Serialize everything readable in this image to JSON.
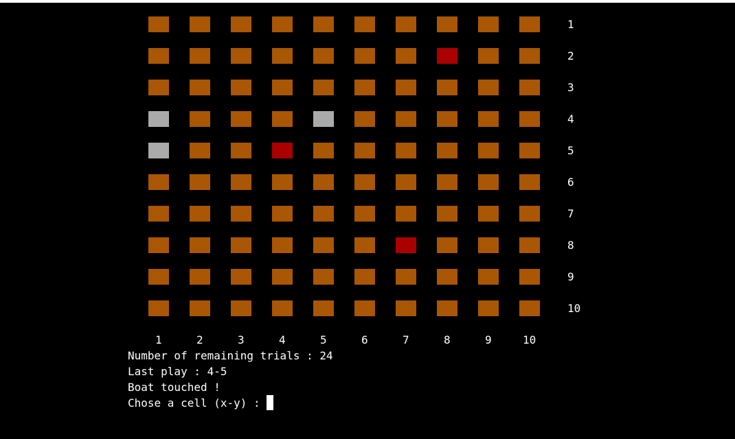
{
  "colors": {
    "background": "#000000",
    "unknown": "#a95605",
    "hit": "#aa0000",
    "miss": "#aaaaaa",
    "text": "#ffffff"
  },
  "grid": {
    "size": 10,
    "column_labels": [
      "1",
      "2",
      "3",
      "4",
      "5",
      "6",
      "7",
      "8",
      "9",
      "10"
    ],
    "row_labels": [
      "1",
      "2",
      "3",
      "4",
      "5",
      "6",
      "7",
      "8",
      "9",
      "10"
    ],
    "cells": [
      [
        "unknown",
        "unknown",
        "unknown",
        "unknown",
        "unknown",
        "unknown",
        "unknown",
        "unknown",
        "unknown",
        "unknown"
      ],
      [
        "unknown",
        "unknown",
        "unknown",
        "unknown",
        "unknown",
        "unknown",
        "unknown",
        "hit",
        "unknown",
        "unknown"
      ],
      [
        "unknown",
        "unknown",
        "unknown",
        "unknown",
        "unknown",
        "unknown",
        "unknown",
        "unknown",
        "unknown",
        "unknown"
      ],
      [
        "miss",
        "unknown",
        "unknown",
        "unknown",
        "miss",
        "unknown",
        "unknown",
        "unknown",
        "unknown",
        "unknown"
      ],
      [
        "miss",
        "unknown",
        "unknown",
        "hit",
        "unknown",
        "unknown",
        "unknown",
        "unknown",
        "unknown",
        "unknown"
      ],
      [
        "unknown",
        "unknown",
        "unknown",
        "unknown",
        "unknown",
        "unknown",
        "unknown",
        "unknown",
        "unknown",
        "unknown"
      ],
      [
        "unknown",
        "unknown",
        "unknown",
        "unknown",
        "unknown",
        "unknown",
        "unknown",
        "unknown",
        "unknown",
        "unknown"
      ],
      [
        "unknown",
        "unknown",
        "unknown",
        "unknown",
        "unknown",
        "unknown",
        "hit",
        "unknown",
        "unknown",
        "unknown"
      ],
      [
        "unknown",
        "unknown",
        "unknown",
        "unknown",
        "unknown",
        "unknown",
        "unknown",
        "unknown",
        "unknown",
        "unknown"
      ],
      [
        "unknown",
        "unknown",
        "unknown",
        "unknown",
        "unknown",
        "unknown",
        "unknown",
        "unknown",
        "unknown",
        "unknown"
      ]
    ]
  },
  "status": {
    "remaining_trials": "Number of remaining trials : 24",
    "last_play": "Last play : 4-5",
    "result": "Boat touched !",
    "prompt": "Chose a cell (x-y) : "
  }
}
